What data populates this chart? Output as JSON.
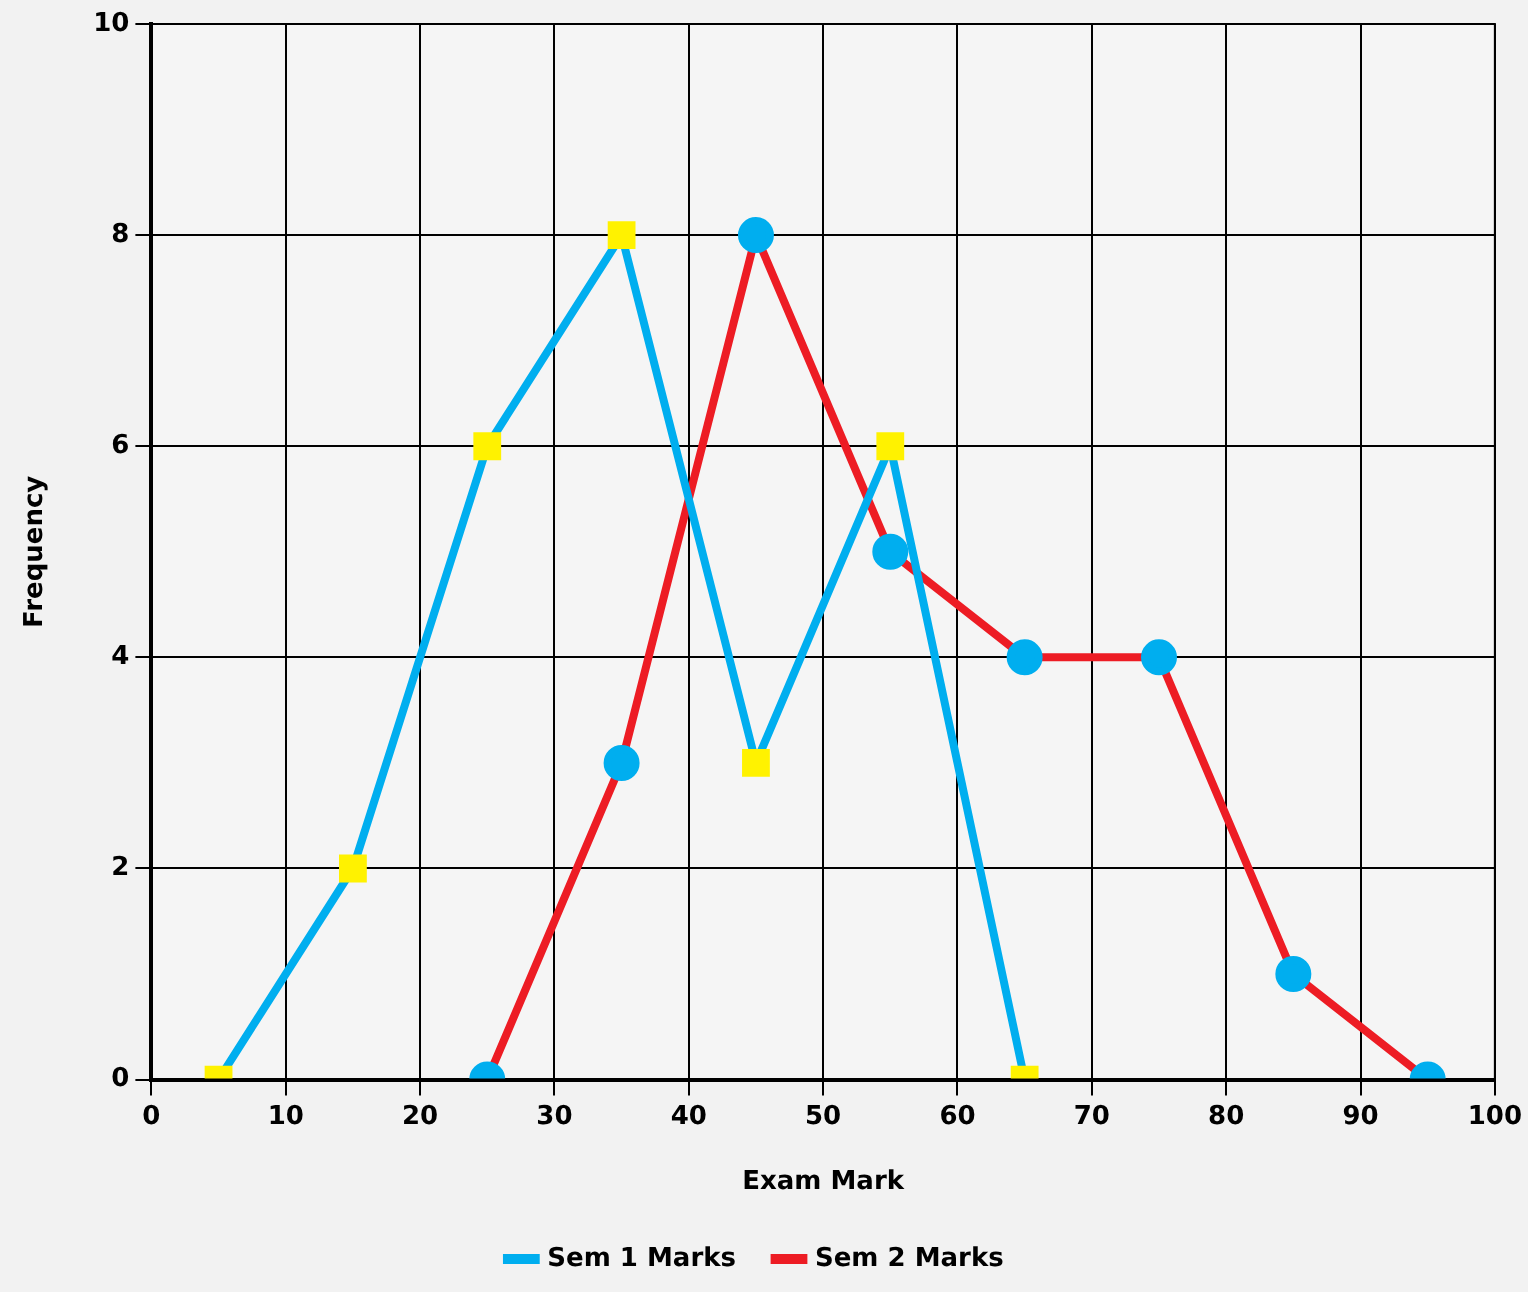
{
  "chart_data": {
    "type": "line",
    "xlabel": "Exam Mark",
    "ylabel": "Frequency",
    "xlim": [
      0,
      100
    ],
    "xticks": [
      0,
      10,
      20,
      30,
      40,
      50,
      60,
      70,
      80,
      90,
      100
    ],
    "ylim": [
      0,
      10
    ],
    "yticks": [
      0,
      2,
      4,
      6,
      8,
      10
    ],
    "grid": true,
    "legend": "bottom",
    "line_style": "solid",
    "series": [
      {
        "name": "Sem 1 Marks",
        "color": "#00aeef",
        "marker": "square",
        "colors": [
          "#fff200",
          "#fff200",
          "#fff200",
          "#fff200",
          "#fff200",
          "#fff200",
          "#fff200"
        ],
        "x": [
          5,
          15,
          25,
          35,
          45,
          55,
          65
        ],
        "values": [
          0,
          2,
          6,
          8,
          3,
          6,
          0
        ]
      },
      {
        "name": "Sem 2 Marks",
        "color": "#ed1c24",
        "marker": "circle",
        "colors": [
          "#00aeef",
          "#00aeef",
          "#00aeef",
          "#00aeef",
          "#00aeef",
          "#00aeef",
          "#00aeef",
          "#00aeef"
        ],
        "x": [
          25,
          35,
          45,
          55,
          65,
          75,
          85,
          95
        ],
        "values": [
          0,
          3,
          8,
          5,
          4,
          4,
          1,
          0
        ]
      }
    ]
  }
}
